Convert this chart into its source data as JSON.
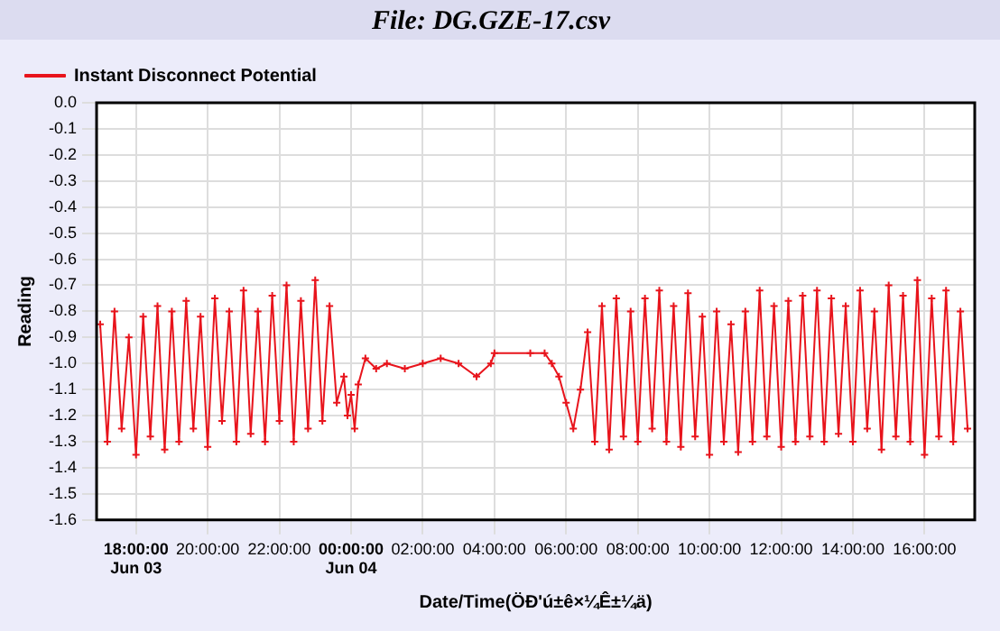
{
  "chart_data": {
    "type": "line",
    "title": "File: DG.GZE-17.csv",
    "xlabel": "Date/Time(ÖÐ'ú±ê×¼Ê±¼ä)",
    "ylabel": "Reading",
    "xlim": [
      "--06-03T16:54",
      "--06-04T17:24"
    ],
    "xticks": [
      {
        "value": "--06-03T18:00",
        "label": "18:00:00\nJun 03"
      },
      {
        "value": "--06-03T20:00",
        "label": "20:00:00"
      },
      {
        "value": "--06-03T22:00",
        "label": "22:00:00"
      },
      {
        "value": "--06-04T00:00",
        "label": "00:00:00\nJun 04"
      },
      {
        "value": "--06-04T02:00",
        "label": "02:00:00"
      },
      {
        "value": "--06-04T04:00",
        "label": "04:00:00"
      },
      {
        "value": "--06-04T06:00",
        "label": "06:00:00"
      },
      {
        "value": "--06-04T08:00",
        "label": "08:00:00"
      },
      {
        "value": "--06-04T10:00",
        "label": "10:00:00"
      },
      {
        "value": "--06-04T12:00",
        "label": "12:00:00"
      },
      {
        "value": "--06-04T14:00",
        "label": "14:00:00"
      },
      {
        "value": "--06-04T16:00",
        "label": "16:00:00"
      }
    ],
    "ylim": [
      -1.6,
      0
    ],
    "yticks": [
      {
        "value": 0,
        "label": "0.0"
      },
      -0.1,
      -0.2,
      -0.3,
      -0.4,
      -0.5,
      -0.6,
      -0.7,
      -0.8,
      -0.9,
      {
        "value": -1,
        "label": "-1.0"
      },
      -1.1,
      -1.2,
      -1.3,
      -1.4,
      -1.5,
      {
        "value": -1.6,
        "label": "-1.6"
      }
    ],
    "grid": true,
    "legend": "top left",
    "marker": "cross",
    "line_style": "solid",
    "series": [
      {
        "name": "Instant Disconnect Potential",
        "color": "#e8141c",
        "x": [
          "--06-03T17:00",
          "--06-03T17:12",
          "--06-03T17:24",
          "--06-03T17:36",
          "--06-03T17:48",
          "--06-03T18:00",
          "--06-03T18:12",
          "--06-03T18:24",
          "--06-03T18:36",
          "--06-03T18:48",
          "--06-03T19:00",
          "--06-03T19:12",
          "--06-03T19:24",
          "--06-03T19:36",
          "--06-03T19:48",
          "--06-03T20:00",
          "--06-03T20:12",
          "--06-03T20:24",
          "--06-03T20:36",
          "--06-03T20:48",
          "--06-03T21:00",
          "--06-03T21:12",
          "--06-03T21:24",
          "--06-03T21:36",
          "--06-03T21:48",
          "--06-03T22:00",
          "--06-03T22:12",
          "--06-03T22:24",
          "--06-03T22:36",
          "--06-03T22:48",
          "--06-03T23:00",
          "--06-03T23:12",
          "--06-03T23:24",
          "--06-03T23:36",
          "--06-03T23:48",
          "--06-03T23:54",
          "--06-04T00:00",
          "--06-04T00:06",
          "--06-04T00:12",
          "--06-04T00:24",
          "--06-04T00:42",
          "--06-04T01:00",
          "--06-04T01:30",
          "--06-04T02:00",
          "--06-04T02:30",
          "--06-04T03:00",
          "--06-04T03:30",
          "--06-04T03:54",
          "--06-04T04:00",
          "--06-04T05:00",
          "--06-04T05:24",
          "--06-04T05:36",
          "--06-04T05:48",
          "--06-04T06:00",
          "--06-04T06:12",
          "--06-04T06:24",
          "--06-04T06:36",
          "--06-04T06:48",
          "--06-04T07:00",
          "--06-04T07:12",
          "--06-04T07:24",
          "--06-04T07:36",
          "--06-04T07:48",
          "--06-04T08:00",
          "--06-04T08:12",
          "--06-04T08:24",
          "--06-04T08:36",
          "--06-04T08:48",
          "--06-04T09:00",
          "--06-04T09:12",
          "--06-04T09:24",
          "--06-04T09:36",
          "--06-04T09:48",
          "--06-04T10:00",
          "--06-04T10:12",
          "--06-04T10:24",
          "--06-04T10:36",
          "--06-04T10:48",
          "--06-04T11:00",
          "--06-04T11:12",
          "--06-04T11:24",
          "--06-04T11:36",
          "--06-04T11:48",
          "--06-04T12:00",
          "--06-04T12:12",
          "--06-04T12:24",
          "--06-04T12:36",
          "--06-04T12:48",
          "--06-04T13:00",
          "--06-04T13:12",
          "--06-04T13:24",
          "--06-04T13:36",
          "--06-04T13:48",
          "--06-04T14:00",
          "--06-04T14:12",
          "--06-04T14:24",
          "--06-04T14:36",
          "--06-04T14:48",
          "--06-04T15:00",
          "--06-04T15:12",
          "--06-04T15:24",
          "--06-04T15:36",
          "--06-04T15:48",
          "--06-04T16:00",
          "--06-04T16:12",
          "--06-04T16:24",
          "--06-04T16:36",
          "--06-04T16:48",
          "--06-04T17:00",
          "--06-04T17:12"
        ],
        "values": [
          -0.85,
          -1.3,
          -0.8,
          -1.25,
          -0.9,
          -1.35,
          -0.82,
          -1.28,
          -0.78,
          -1.33,
          -0.8,
          -1.3,
          -0.76,
          -1.25,
          -0.82,
          -1.32,
          -0.75,
          -1.22,
          -0.8,
          -1.3,
          -0.72,
          -1.27,
          -0.8,
          -1.3,
          -0.74,
          -1.22,
          -0.7,
          -1.3,
          -0.76,
          -1.25,
          -0.68,
          -1.22,
          -0.78,
          -1.15,
          -1.05,
          -1.2,
          -1.12,
          -1.25,
          -1.08,
          -0.98,
          -1.02,
          -1.0,
          -1.02,
          -1.0,
          -0.98,
          -1.0,
          -1.05,
          -1.0,
          -0.96,
          -0.96,
          -0.96,
          -1.0,
          -1.05,
          -1.15,
          -1.25,
          -1.1,
          -0.88,
          -1.3,
          -0.78,
          -1.33,
          -0.75,
          -1.28,
          -0.8,
          -1.3,
          -0.75,
          -1.25,
          -0.72,
          -1.3,
          -0.78,
          -1.32,
          -0.73,
          -1.28,
          -0.82,
          -1.35,
          -0.8,
          -1.3,
          -0.85,
          -1.34,
          -0.8,
          -1.3,
          -0.72,
          -1.28,
          -0.78,
          -1.32,
          -0.76,
          -1.3,
          -0.74,
          -1.28,
          -0.72,
          -1.3,
          -0.75,
          -1.27,
          -0.78,
          -1.3,
          -0.72,
          -1.25,
          -0.8,
          -1.33,
          -0.7,
          -1.28,
          -0.74,
          -1.3,
          -0.68,
          -1.35,
          -0.75,
          -1.28,
          -0.72,
          -1.3,
          -0.8,
          -1.25
        ]
      }
    ]
  }
}
